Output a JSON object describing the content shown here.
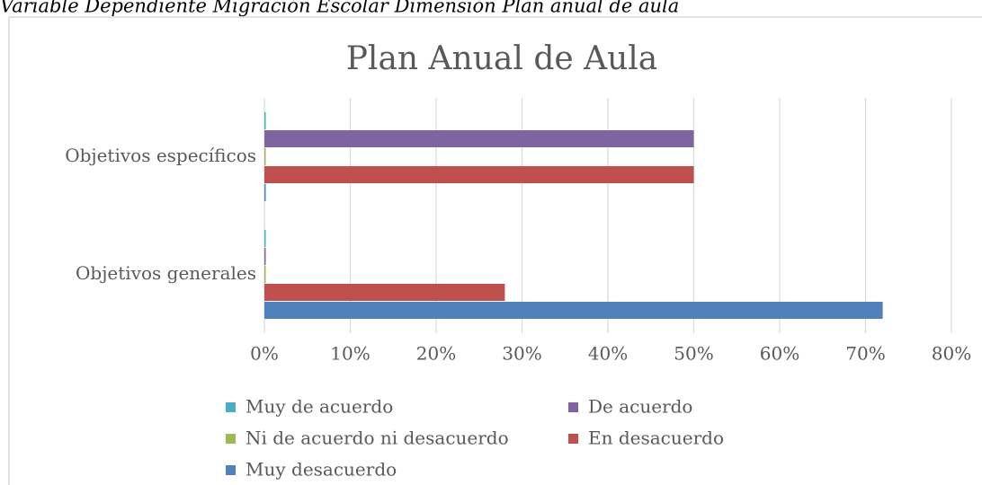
{
  "caption": "Variable Dependiente Migración Escolar Dimensión Plan anual de aula",
  "chart_data": {
    "type": "bar",
    "orientation": "horizontal",
    "title": "Plan Anual de Aula",
    "categories": [
      "Objetivos generales",
      "Objetivos específicos"
    ],
    "series": [
      {
        "name": "Muy de acuerdo",
        "color": "#4bacc6",
        "values": [
          0,
          0
        ]
      },
      {
        "name": "De acuerdo",
        "color": "#8064a2",
        "values": [
          0,
          50
        ]
      },
      {
        "name": "Ni de acuerdo ni desacuerdo",
        "color": "#9bbb59",
        "values": [
          0,
          0
        ]
      },
      {
        "name": "En desacuerdo",
        "color": "#c0504d",
        "values": [
          28,
          50
        ]
      },
      {
        "name": "Muy desacuerdo",
        "color": "#4f81bd",
        "values": [
          72,
          0
        ]
      }
    ],
    "xlim": [
      0,
      80
    ],
    "xticks": [
      {
        "value": 0,
        "label": "0%"
      },
      {
        "value": 10,
        "label": "10%"
      },
      {
        "value": 20,
        "label": "20%"
      },
      {
        "value": 30,
        "label": "30%"
      },
      {
        "value": 40,
        "label": "40%"
      },
      {
        "value": 50,
        "label": "50%"
      },
      {
        "value": 60,
        "label": "60%"
      },
      {
        "value": 70,
        "label": "70%"
      },
      {
        "value": 80,
        "label": "80%"
      }
    ],
    "grid": true,
    "legend": "bottom"
  }
}
